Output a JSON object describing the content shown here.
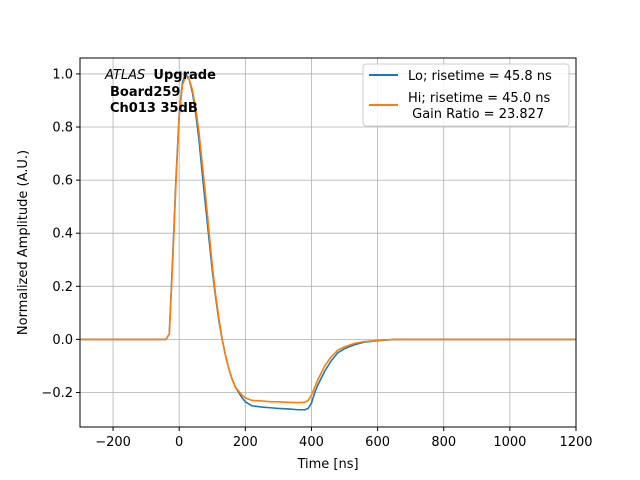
{
  "chart_data": {
    "type": "line",
    "title": "",
    "xlabel": "Time [ns]",
    "ylabel": "Normalized Amplitude (A.U.)",
    "xlim": [
      -300,
      1200
    ],
    "ylim": [
      -0.33,
      1.06
    ],
    "xticks": [
      -200,
      0,
      200,
      400,
      600,
      800,
      1000,
      1200
    ],
    "xtick_labels": [
      "−200",
      "0",
      "200",
      "400",
      "600",
      "800",
      "1000",
      "1200"
    ],
    "yticks": [
      -0.2,
      0.0,
      0.2,
      0.4,
      0.6,
      0.8,
      1.0
    ],
    "ytick_labels": [
      "−0.2",
      "0.0",
      "0.2",
      "0.4",
      "0.6",
      "0.8",
      "1.0"
    ],
    "grid": true,
    "legend_position": "top-right",
    "annotation": {
      "italic": "ATLAS",
      "bold": "Upgrade",
      "line2": "Board259",
      "line3": "Ch013 35dB"
    },
    "series": [
      {
        "name": "Lo; risetime = 45.8 ns",
        "color": "#1f77b4",
        "x": [
          -300,
          -40,
          -30,
          -20,
          -10,
          0,
          10,
          20,
          30,
          40,
          50,
          60,
          70,
          80,
          90,
          100,
          110,
          120,
          130,
          140,
          150,
          160,
          170,
          180,
          190,
          200,
          220,
          250,
          280,
          300,
          330,
          360,
          380,
          390,
          400,
          410,
          420,
          440,
          460,
          480,
          500,
          530,
          560,
          600,
          650,
          700,
          800,
          900,
          1000,
          1100,
          1200
        ],
        "y": [
          0.0,
          0.0,
          0.02,
          0.3,
          0.6,
          0.85,
          0.97,
          1.0,
          0.98,
          0.93,
          0.85,
          0.75,
          0.62,
          0.5,
          0.38,
          0.26,
          0.16,
          0.07,
          0.0,
          -0.06,
          -0.11,
          -0.15,
          -0.18,
          -0.2,
          -0.22,
          -0.235,
          -0.25,
          -0.255,
          -0.258,
          -0.26,
          -0.262,
          -0.265,
          -0.265,
          -0.26,
          -0.24,
          -0.2,
          -0.17,
          -0.12,
          -0.08,
          -0.05,
          -0.035,
          -0.02,
          -0.01,
          -0.005,
          0.0,
          0.0,
          0.0,
          0.0,
          0.0,
          0.0,
          0.0
        ]
      },
      {
        "name": "Hi; risetime = 45.0 ns\n Gain Ratio = 23.827",
        "color": "#ff7f0e",
        "x": [
          -300,
          -40,
          -30,
          -20,
          -10,
          0,
          10,
          20,
          30,
          40,
          50,
          60,
          70,
          80,
          90,
          100,
          110,
          120,
          130,
          140,
          150,
          160,
          170,
          180,
          190,
          200,
          220,
          250,
          280,
          300,
          330,
          360,
          380,
          390,
          400,
          410,
          420,
          440,
          460,
          480,
          500,
          530,
          560,
          600,
          650,
          700,
          800,
          900,
          1000,
          1100,
          1200
        ],
        "y": [
          0.0,
          0.0,
          0.02,
          0.28,
          0.58,
          0.84,
          0.96,
          0.99,
          0.98,
          0.94,
          0.87,
          0.78,
          0.66,
          0.54,
          0.41,
          0.28,
          0.17,
          0.08,
          0.0,
          -0.06,
          -0.11,
          -0.15,
          -0.18,
          -0.195,
          -0.21,
          -0.22,
          -0.23,
          -0.232,
          -0.235,
          -0.235,
          -0.237,
          -0.238,
          -0.237,
          -0.23,
          -0.21,
          -0.18,
          -0.15,
          -0.1,
          -0.065,
          -0.04,
          -0.028,
          -0.015,
          -0.008,
          -0.004,
          0.0,
          0.0,
          0.0,
          0.0,
          0.0,
          0.0,
          0.0
        ]
      }
    ]
  }
}
